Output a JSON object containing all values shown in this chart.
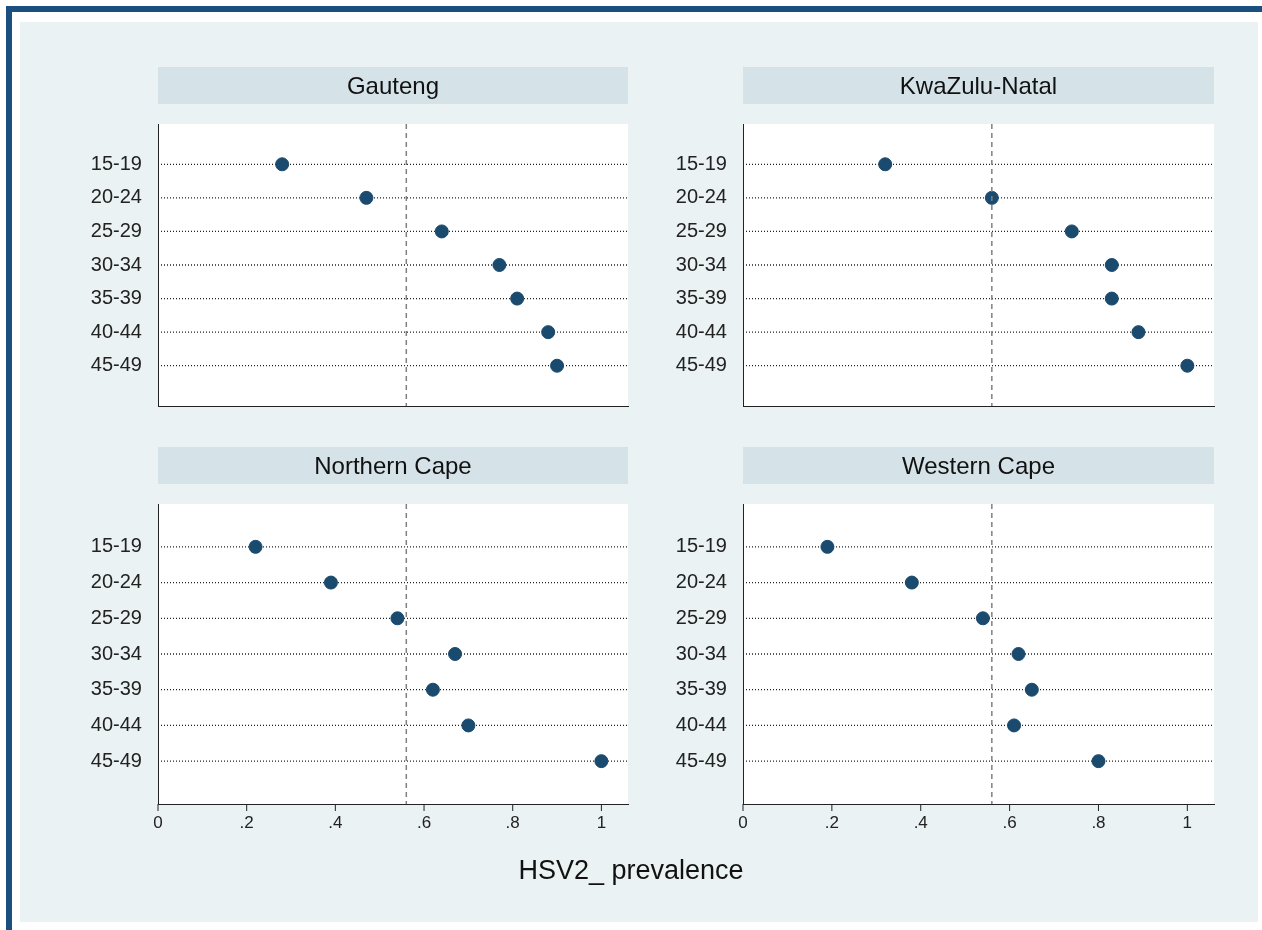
{
  "chart_data": [
    {
      "type": "scatter",
      "title": "Gauteng",
      "orientation": "horizontal",
      "categories": [
        "15-19",
        "20-24",
        "25-29",
        "30-34",
        "35-39",
        "40-44",
        "45-49"
      ],
      "values": [
        0.28,
        0.47,
        0.64,
        0.77,
        0.81,
        0.88,
        0.9
      ],
      "color": "#1a4a6e",
      "marker": "circle",
      "xlim": [
        0,
        1.06
      ],
      "tick_labels": "y",
      "grid": "y",
      "ref_lines": [
        {
          "axis": "x",
          "value": 0.56,
          "color": "#808080",
          "line_style": "dashed"
        }
      ]
    },
    {
      "type": "scatter",
      "title": "KwaZulu-Natal",
      "orientation": "horizontal",
      "categories": [
        "15-19",
        "20-24",
        "25-29",
        "30-34",
        "35-39",
        "40-44",
        "45-49"
      ],
      "values": [
        0.32,
        0.56,
        0.74,
        0.83,
        0.83,
        0.89,
        1.0
      ],
      "color": "#1a4a6e",
      "marker": "circle",
      "xlim": [
        0,
        1.06
      ],
      "tick_labels": "y",
      "grid": "y",
      "ref_lines": [
        {
          "axis": "x",
          "value": 0.56,
          "color": "#808080",
          "line_style": "dashed"
        }
      ]
    },
    {
      "type": "scatter",
      "title": "Northern Cape",
      "xlabel": "HSV2_ prevalence",
      "orientation": "horizontal",
      "categories": [
        "15-19",
        "20-24",
        "25-29",
        "30-34",
        "35-39",
        "40-44",
        "45-49"
      ],
      "values": [
        0.22,
        0.39,
        0.54,
        0.67,
        0.62,
        0.7,
        1.0
      ],
      "color": "#1a4a6e",
      "marker": "circle",
      "xlim": [
        0,
        1.06
      ],
      "xticks": [
        {
          "value": 0,
          "label": "0"
        },
        {
          "value": 0.2,
          "label": ".2"
        },
        {
          "value": 0.4,
          "label": ".4"
        },
        {
          "value": 0.6,
          "label": ".6"
        },
        {
          "value": 0.8,
          "label": ".8"
        },
        {
          "value": 1,
          "label": "1"
        }
      ],
      "grid": "y",
      "ref_lines": [
        {
          "axis": "x",
          "value": 0.56,
          "color": "#808080",
          "line_style": "dashed"
        }
      ]
    },
    {
      "type": "scatter",
      "title": "Western Cape",
      "orientation": "horizontal",
      "categories": [
        "15-19",
        "20-24",
        "25-29",
        "30-34",
        "35-39",
        "40-44",
        "45-49"
      ],
      "values": [
        0.19,
        0.38,
        0.54,
        0.62,
        0.65,
        0.61,
        0.8
      ],
      "color": "#1a4a6e",
      "marker": "circle",
      "xlim": [
        0,
        1.06
      ],
      "xticks": [
        {
          "value": 0,
          "label": "0"
        },
        {
          "value": 0.2,
          "label": ".2"
        },
        {
          "value": 0.4,
          "label": ".4"
        },
        {
          "value": 0.6,
          "label": ".6"
        },
        {
          "value": 0.8,
          "label": ".8"
        },
        {
          "value": 1,
          "label": "1"
        }
      ],
      "grid": "y",
      "ref_lines": [
        {
          "axis": "x",
          "value": 0.56,
          "color": "#808080",
          "line_style": "dashed"
        }
      ]
    }
  ]
}
